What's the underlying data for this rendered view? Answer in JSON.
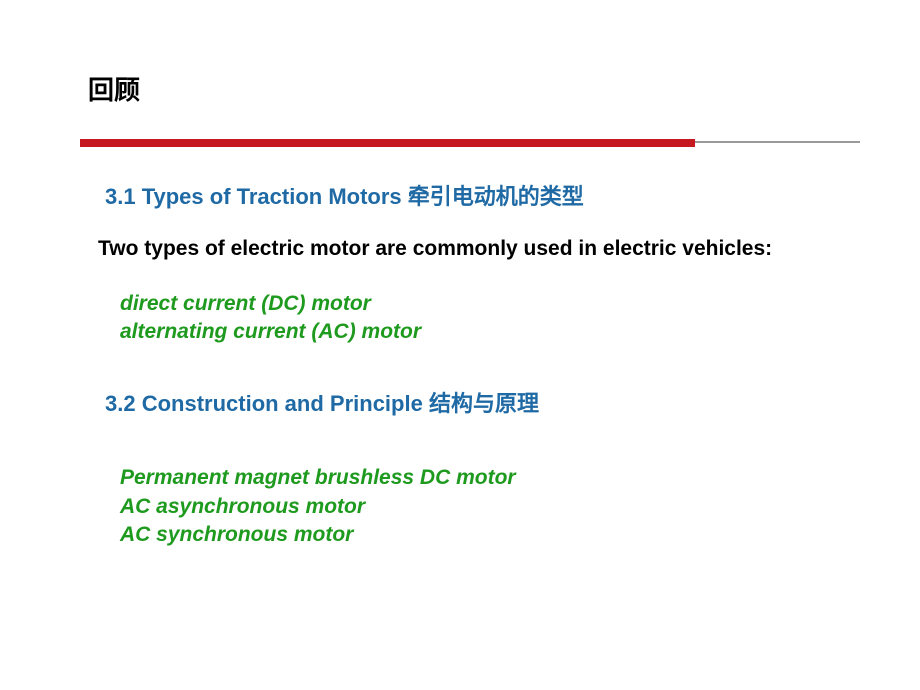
{
  "title": "回顾",
  "section1": "3.1 Types of Traction Motors 牵引电动机的类型",
  "lead": "Two types of electric motor are commonly used in electric vehicles:",
  "list1a": "direct current (DC) motor",
  "list1b": "alternating current (AC) motor",
  "section2": "3.2 Construction and Principle 结构与原理",
  "list2a": "Permanent magnet brushless DC motor",
  "list2b": "AC asynchronous motor",
  "list2c": "AC synchronous motor",
  "colors": {
    "redbar": "#c51820",
    "grayline": "#9a9a9a",
    "blue": "#1f6aa5",
    "green": "#1e9a1e",
    "black": "#000000",
    "background": "#ffffff"
  }
}
